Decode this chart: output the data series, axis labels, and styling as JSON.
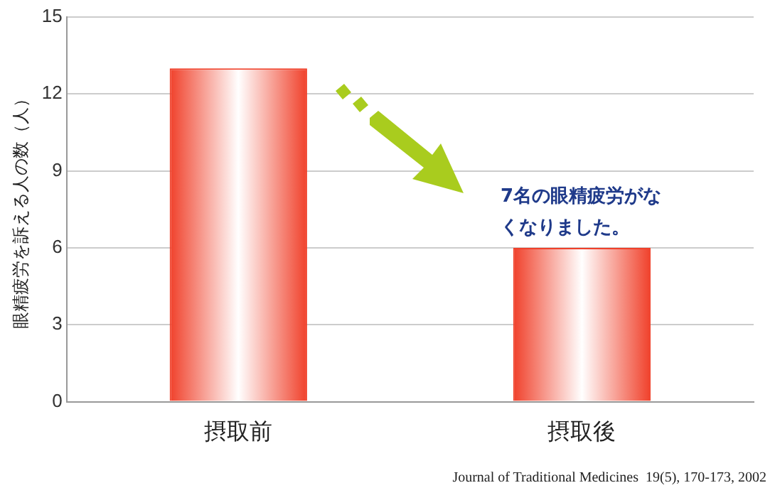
{
  "chart_data": {
    "type": "bar",
    "ylabel": "眼精疲労を訴える人の数（人）",
    "categories": [
      "摂取前",
      "摂取後"
    ],
    "values": [
      13,
      6
    ],
    "color": "#f0402a",
    "ylim": [
      0,
      15
    ],
    "yticks": [
      0,
      3,
      6,
      9,
      12,
      15
    ],
    "grid": "y",
    "legend": false,
    "annotations": [
      "7名の眼精疲労がなくなりました。",
      "Journal of Traditional Medicines  19(5), 170-173, 2002"
    ]
  }
}
